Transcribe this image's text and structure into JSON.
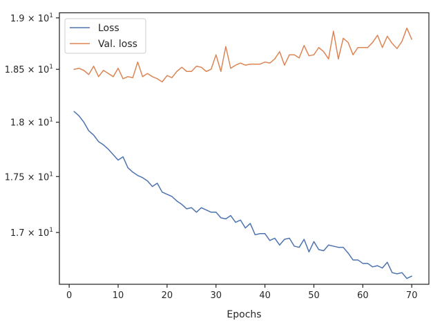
{
  "chart_data": {
    "type": "line",
    "title": "",
    "xlabel": "Epochs",
    "ylabel": "",
    "xlim": [
      -2,
      73.5
    ],
    "ylim": [
      16.55,
      19.05
    ],
    "y_scale": "log",
    "grid": false,
    "legend_position": "top-left",
    "x_ticks": [
      0,
      10,
      20,
      30,
      40,
      50,
      60,
      70
    ],
    "x_tick_labels": [
      "0",
      "10",
      "20",
      "30",
      "40",
      "50",
      "60",
      "70"
    ],
    "y_ticks": [
      17.0,
      17.5,
      18.0,
      18.5,
      19.0
    ],
    "y_tick_labels": [
      {
        "mantissa": "1.7",
        "exponent": "1"
      },
      {
        "mantissa": "1.75",
        "exponent": "1"
      },
      {
        "mantissa": "1.8",
        "exponent": "1"
      },
      {
        "mantissa": "1.85",
        "exponent": "1"
      },
      {
        "mantissa": "1.9",
        "exponent": "1"
      }
    ],
    "x": [
      1,
      2,
      3,
      4,
      5,
      6,
      7,
      8,
      9,
      10,
      11,
      12,
      13,
      14,
      15,
      16,
      17,
      18,
      19,
      20,
      21,
      22,
      23,
      24,
      25,
      26,
      27,
      28,
      29,
      30,
      31,
      32,
      33,
      34,
      35,
      36,
      37,
      38,
      39,
      40,
      41,
      42,
      43,
      44,
      45,
      46,
      47,
      48,
      49,
      50,
      51,
      52,
      53,
      54,
      55,
      56,
      57,
      58,
      59,
      60,
      61,
      62,
      63,
      64,
      65,
      66,
      67,
      68,
      69,
      70
    ],
    "series": [
      {
        "name": "Loss",
        "color": "#4c72b0",
        "values": [
          18.1,
          18.06,
          18.0,
          17.92,
          17.88,
          17.82,
          17.79,
          17.75,
          17.7,
          17.65,
          17.68,
          17.58,
          17.54,
          17.51,
          17.49,
          17.46,
          17.41,
          17.44,
          17.36,
          17.34,
          17.32,
          17.28,
          17.25,
          17.21,
          17.22,
          17.18,
          17.22,
          17.2,
          17.18,
          17.18,
          17.13,
          17.12,
          17.15,
          17.09,
          17.11,
          17.04,
          17.08,
          16.98,
          16.99,
          16.99,
          16.93,
          16.95,
          16.89,
          16.94,
          16.95,
          16.88,
          16.87,
          16.94,
          16.83,
          16.92,
          16.85,
          16.84,
          16.89,
          16.88,
          16.87,
          16.87,
          16.82,
          16.76,
          16.76,
          16.73,
          16.73,
          16.7,
          16.71,
          16.69,
          16.74,
          16.65,
          16.64,
          16.65,
          16.6,
          16.62
        ]
      },
      {
        "name": "Val. loss",
        "color": "#dd8452",
        "values": [
          18.5,
          18.51,
          18.49,
          18.45,
          18.53,
          18.43,
          18.49,
          18.46,
          18.43,
          18.51,
          18.41,
          18.43,
          18.42,
          18.57,
          18.43,
          18.46,
          18.43,
          18.41,
          18.38,
          18.44,
          18.42,
          18.48,
          18.52,
          18.48,
          18.48,
          18.53,
          18.52,
          18.48,
          18.5,
          18.64,
          18.48,
          18.72,
          18.51,
          18.54,
          18.56,
          18.54,
          18.55,
          18.55,
          18.55,
          18.57,
          18.56,
          18.6,
          18.67,
          18.54,
          18.64,
          18.64,
          18.61,
          18.73,
          18.63,
          18.64,
          18.71,
          18.67,
          18.6,
          18.87,
          18.6,
          18.8,
          18.76,
          18.64,
          18.71,
          18.71,
          18.71,
          18.76,
          18.83,
          18.71,
          18.82,
          18.75,
          18.7,
          18.77,
          18.9,
          18.79
        ]
      }
    ]
  }
}
